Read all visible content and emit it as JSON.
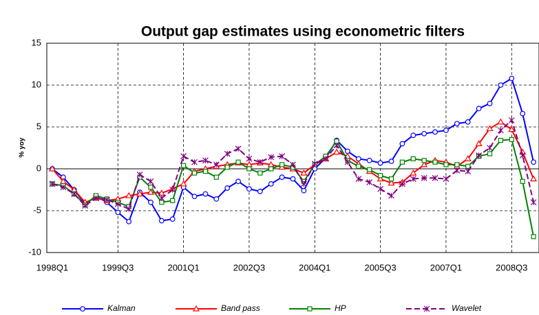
{
  "chart_data": {
    "type": "line",
    "title": "Output gap estimates using econometric filters",
    "y_label": "% yoy",
    "categories": [
      "1998Q1",
      null,
      null,
      null,
      null,
      null,
      "1999Q3",
      null,
      null,
      null,
      null,
      null,
      "2001Q1",
      null,
      null,
      null,
      null,
      null,
      "2002Q3",
      null,
      null,
      null,
      null,
      null,
      "2004Q1",
      null,
      null,
      null,
      null,
      null,
      "2005Q3",
      null,
      null,
      null,
      null,
      null,
      "2007Q1",
      null,
      null,
      null,
      null,
      null,
      "2008Q3",
      null,
      null
    ],
    "ylim": [
      -10,
      15
    ],
    "yticks": [
      -10,
      -5,
      0,
      5,
      10,
      15
    ],
    "grid": true,
    "legend": "bottom",
    "series": [
      {
        "name": "Kalman",
        "color": "#0000ff",
        "marker": "circle",
        "values": [
          0,
          -1,
          -2.5,
          -4.2,
          -3.3,
          -4,
          -5.2,
          -6.3,
          -2.8,
          -4,
          -6.2,
          -6,
          -2.2,
          -3.3,
          -3,
          -3.6,
          -2.3,
          -1.5,
          -2.4,
          -2.7,
          -1.8,
          -1,
          -1.2,
          -2.6,
          0,
          1.3,
          3.4,
          2.1,
          1.2,
          1,
          0.7,
          0.9,
          3,
          4,
          4.2,
          4.4,
          4.6,
          5.4,
          5.6,
          7.2,
          7.8,
          10,
          10.8,
          6.6,
          0.8
        ]
      },
      {
        "name": "Band pass",
        "color": "#ff0000",
        "marker": "triangle",
        "values": [
          0,
          -1.5,
          -2.5,
          -4,
          -3.5,
          -3.8,
          -3.6,
          -3.2,
          -3,
          -2.8,
          -2.9,
          -2.4,
          -1.8,
          -0.3,
          0,
          0.3,
          0.5,
          0.7,
          0.5,
          0.7,
          0.5,
          0.2,
          0,
          -0.5,
          0.5,
          1.2,
          2,
          1.5,
          0.6,
          -0.3,
          -1.2,
          -1.7,
          -1.6,
          -0.5,
          0.5,
          1,
          0.8,
          0.3,
          1.2,
          3,
          4.8,
          5.6,
          4.7,
          2,
          -1.2
        ]
      },
      {
        "name": "HP",
        "color": "#008000",
        "marker": "square",
        "values": [
          -1.8,
          -2,
          -3,
          -4.3,
          -3.2,
          -3.6,
          -4,
          -4.5,
          -1,
          -2.2,
          -4,
          -3.8,
          0.4,
          -0.5,
          -0.3,
          -1,
          0.2,
          0.8,
          0,
          -0.5,
          0,
          0.5,
          0.2,
          -1.5,
          0.5,
          1.5,
          3.3,
          1,
          0.3,
          -0.1,
          -0.8,
          -1.2,
          0.8,
          1.2,
          1,
          0.8,
          0.5,
          0.5,
          0.3,
          1.5,
          1.8,
          3.4,
          3.5,
          -1.5,
          -8.1
        ]
      },
      {
        "name": "Wavelet",
        "color": "#800080",
        "marker": "star",
        "dashed": true,
        "values": [
          -1.8,
          -2.2,
          -3,
          -4.4,
          -3.5,
          -3.7,
          -4.2,
          -4.8,
          -0.7,
          -1.5,
          -3.5,
          -2.5,
          1.5,
          0.8,
          1,
          0.5,
          1.8,
          2.4,
          1.2,
          0.8,
          1.4,
          1.5,
          0.5,
          -1.8,
          0.6,
          1.2,
          2.8,
          0.8,
          -1.2,
          -1.6,
          -2.4,
          -3.2,
          -1.8,
          -1.2,
          -1.1,
          -1.1,
          -1.2,
          -0.2,
          -0.3,
          1.6,
          2.5,
          4.6,
          5.8,
          1.6,
          -4
        ]
      }
    ]
  }
}
